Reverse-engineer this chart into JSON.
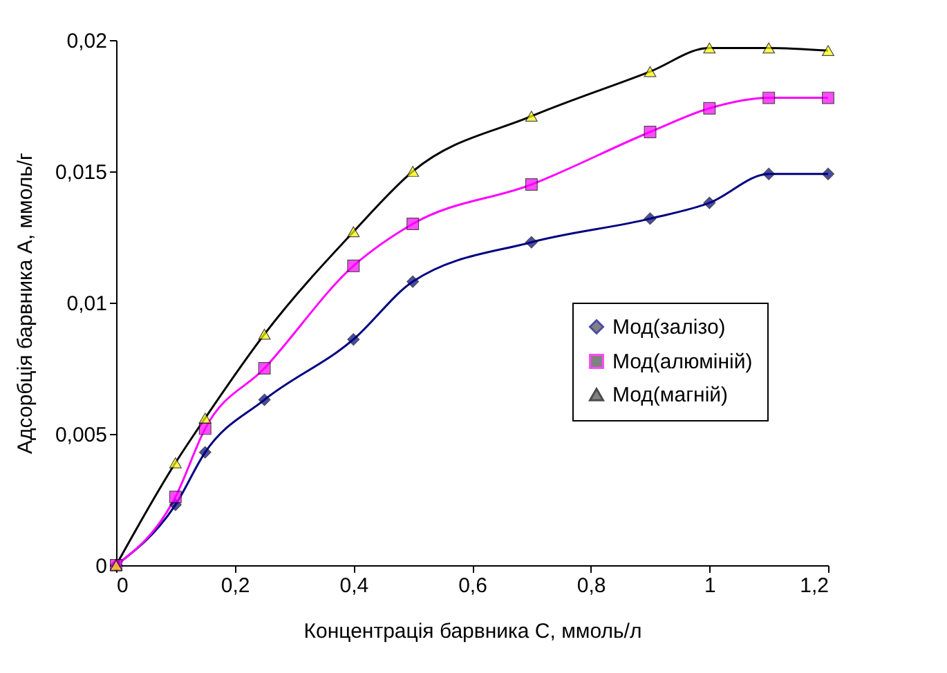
{
  "chart_data": {
    "type": "line",
    "xlabel": "Концентрація барвника С, ммоль/л",
    "ylabel": "Адсорбція барвника А, ммоль/г",
    "x": [
      0,
      0.1,
      0.15,
      0.25,
      0.4,
      0.5,
      0.7,
      0.9,
      1.0,
      1.1,
      1.2
    ],
    "series": [
      {
        "name": "Мод(залізо)",
        "color": "#000080",
        "marker": "diamond",
        "colors": [
          "#000080",
          "#000080",
          "#000080",
          "#000080",
          "#000080",
          "#000080",
          "#000080",
          "#000080",
          "#000080",
          "#000080",
          "#000080"
        ],
        "values": [
          0,
          0.0023,
          0.0043,
          0.0063,
          0.0086,
          0.0108,
          0.0123,
          0.0132,
          0.0138,
          0.0149,
          0.0149
        ]
      },
      {
        "name": "Мод(алюміній)",
        "color": "#ff00ff",
        "marker": "square",
        "colors": [
          "#ff00ff",
          "#ff00ff",
          "#ff00ff",
          "#ff00ff",
          "#ff00ff",
          "#ff00ff",
          "#ff00ff",
          "#ff00ff",
          "#ff00ff",
          "#ff00ff",
          "#ff00ff"
        ],
        "values": [
          0,
          0.0026,
          0.0052,
          0.0075,
          0.0114,
          0.013,
          0.0145,
          0.0165,
          0.0174,
          0.0178,
          0.0178
        ]
      },
      {
        "name": "Мод(магній)",
        "color": "#000000",
        "marker": "triangle",
        "colors": [
          "#ffff00",
          "#ffff00",
          "#ffff00",
          "#ffff00",
          "#ffff00",
          "#ffff00",
          "#ffff00",
          "#ffff00",
          "#ffff00",
          "#ffff00",
          "#ffff00"
        ],
        "values": [
          0,
          0.0039,
          0.0056,
          0.0088,
          0.0127,
          0.015,
          0.0171,
          0.0188,
          0.0197,
          0.0197,
          0.0196
        ]
      }
    ],
    "xlim": [
      0,
      1.2
    ],
    "xticks": [
      {
        "value": 0,
        "label": "0"
      },
      {
        "value": 0.2,
        "label": "0,2"
      },
      {
        "value": 0.4,
        "label": "0,4"
      },
      {
        "value": 0.6,
        "label": "0,6"
      },
      {
        "value": 0.8,
        "label": "0,8"
      },
      {
        "value": 1,
        "label": "1"
      },
      {
        "value": 1.2,
        "label": "1,2"
      }
    ],
    "ylim": [
      0,
      0.02
    ],
    "yticks": [
      {
        "value": 0,
        "label": "0"
      },
      {
        "value": 0.005,
        "label": "0,005"
      },
      {
        "value": 0.01,
        "label": "0,01"
      },
      {
        "value": 0.015,
        "label": "0,015"
      },
      {
        "value": 0.02,
        "label": "0,02"
      }
    ],
    "grid": false,
    "legend": "right",
    "line_style": "solid"
  }
}
